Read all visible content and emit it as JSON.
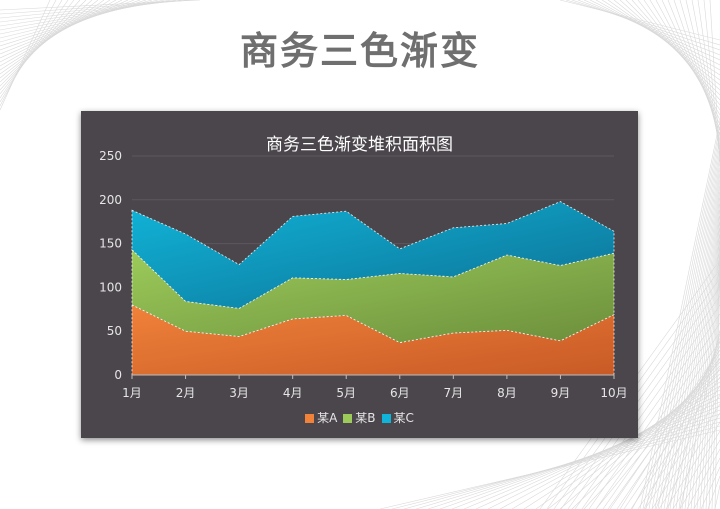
{
  "slide": {
    "title": "商务三色渐变"
  },
  "chart_data": {
    "type": "area",
    "stacked": true,
    "title": "商务三色渐变堆积面积图",
    "categories": [
      "1月",
      "2月",
      "3月",
      "4月",
      "5月",
      "6月",
      "7月",
      "8月",
      "9月",
      "10月"
    ],
    "series": [
      {
        "name": "某A",
        "values": [
          80,
          50,
          44,
          64,
          68,
          37,
          48,
          51,
          39,
          69
        ],
        "color_top": "#f0823a",
        "color_bottom": "#c85a26"
      },
      {
        "name": "某B",
        "values": [
          63,
          34,
          32,
          47,
          41,
          79,
          64,
          86,
          86,
          70
        ],
        "color_top": "#9ccb5a",
        "color_bottom": "#6c8f3c"
      },
      {
        "name": "某C",
        "values": [
          45,
          77,
          50,
          70,
          78,
          28,
          56,
          36,
          73,
          25
        ],
        "color_top": "#10b4d8",
        "color_bottom": "#0d6f93"
      }
    ],
    "ylim": [
      0,
      250
    ],
    "yticks": [
      0,
      50,
      100,
      150,
      200,
      250
    ],
    "grid": true,
    "legend_position": "bottom"
  }
}
